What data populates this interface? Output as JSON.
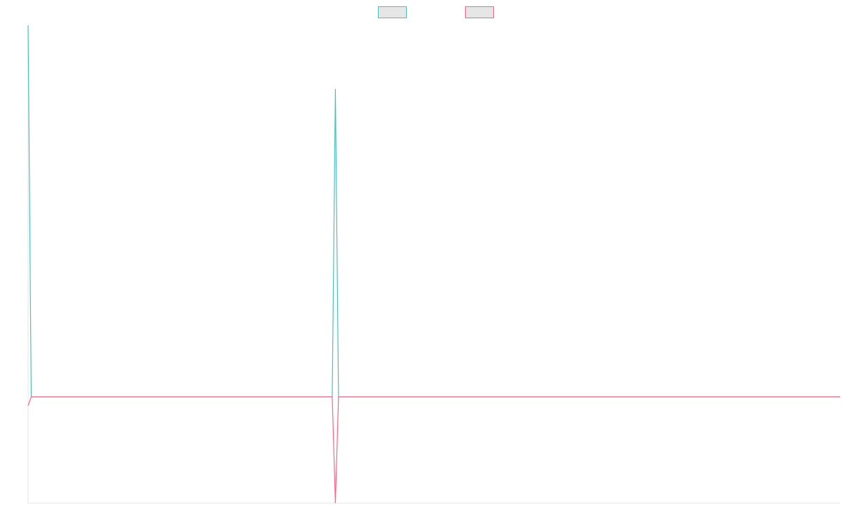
{
  "chart_data": {
    "type": "line",
    "title": "",
    "xlabel": "",
    "ylabel": "",
    "grid": false,
    "legend": "top-center",
    "n_points": 260,
    "ylim": [
      -1.0,
      3.5
    ],
    "series": [
      {
        "name": "",
        "color": "#4bc0c0",
        "fill": "#e6e6e6",
        "points": [
          [
            0,
            3.5
          ],
          [
            1,
            0.0
          ],
          [
            97,
            0.0
          ],
          [
            98,
            2.9
          ],
          [
            99,
            0.0
          ],
          [
            259,
            0.0
          ]
        ]
      },
      {
        "name": "",
        "color": "#ff6384",
        "fill": "#e6e6e6",
        "points": [
          [
            0,
            -0.08
          ],
          [
            1,
            0.0
          ],
          [
            97,
            0.0
          ],
          [
            98,
            -1.0
          ],
          [
            99,
            0.0
          ],
          [
            259,
            0.0
          ]
        ]
      }
    ]
  }
}
